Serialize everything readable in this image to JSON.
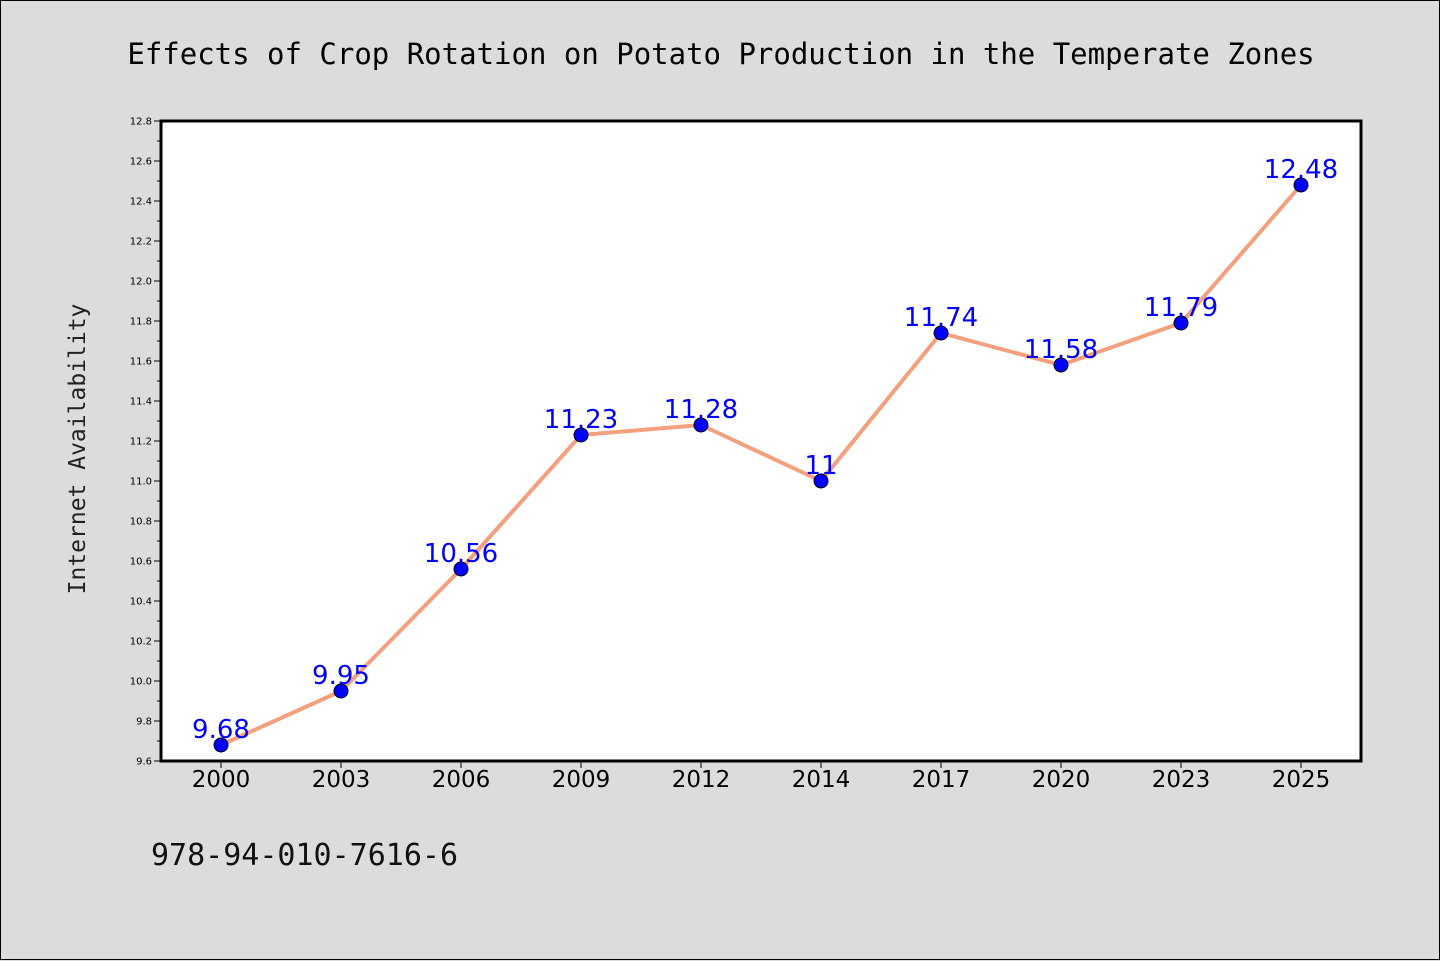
{
  "chart_data": {
    "type": "line",
    "title": "Effects of Crop Rotation on Potato Production in the Temperate Zones",
    "xlabel": "",
    "ylabel": "Internet Availability",
    "categories": [
      "2000",
      "2003",
      "2006",
      "2009",
      "2012",
      "2014",
      "2017",
      "2020",
      "2023",
      "2025"
    ],
    "series": [
      {
        "values": [
          9.68,
          9.95,
          10.56,
          11.23,
          11.28,
          11,
          11.74,
          11.58,
          11.79,
          12.48
        ],
        "data_labels": [
          "9.68",
          "9.95",
          "10.56",
          "11.23",
          "11.28",
          "11",
          "11.74",
          "11.58",
          "11.79",
          "12.48"
        ],
        "line_color": "#f4a07e",
        "marker_color": "#0000ff"
      }
    ],
    "ylim": [
      9.6,
      12.8
    ],
    "yticks": [
      "9.6",
      "9.8",
      "10.0",
      "10.2",
      "10.4",
      "10.6",
      "10.8",
      "11.0",
      "11.2",
      "11.4",
      "11.6",
      "11.8",
      "12.0",
      "12.2",
      "12.4",
      "12.6",
      "12.8"
    ],
    "grid": false,
    "legend": "none"
  },
  "footer": {
    "isbn": "978-94-010-7616-6"
  },
  "colors": {
    "background": "#dcdcdc",
    "plot_area": "#ffffff",
    "line": "#f4a07e",
    "marker": "#0000ff",
    "data_label": "#0000ff"
  }
}
